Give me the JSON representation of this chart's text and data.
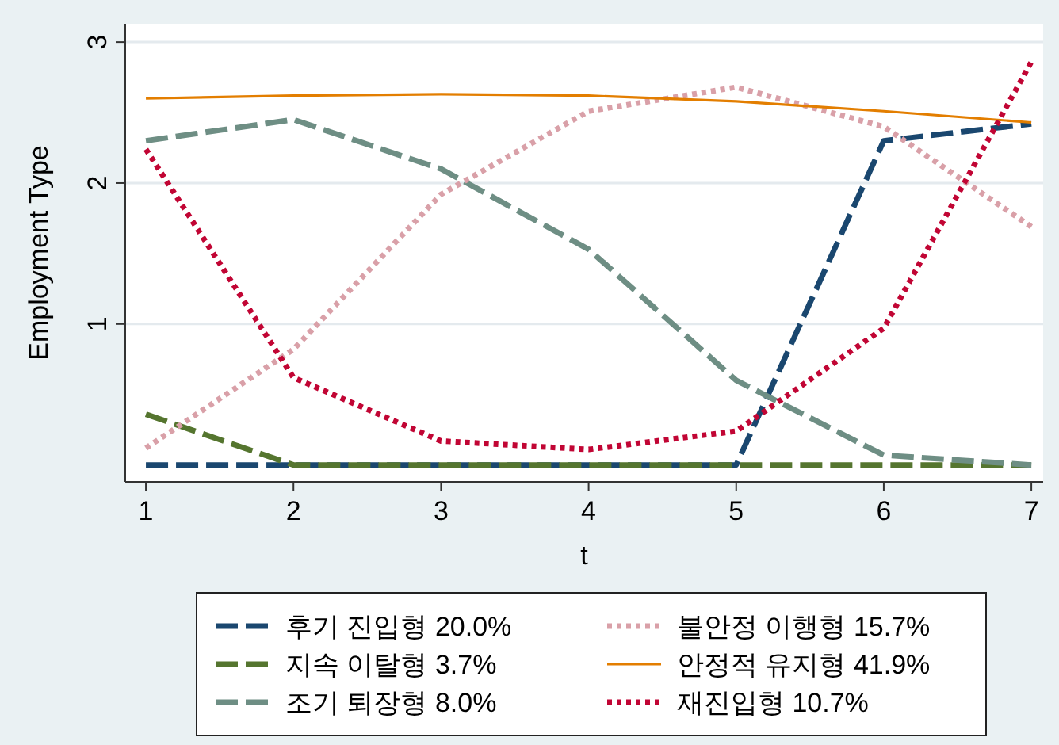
{
  "chart_data": {
    "type": "line",
    "xlabel": "t",
    "ylabel": "Employment Type",
    "x": [
      1,
      2,
      3,
      4,
      5,
      6,
      7
    ],
    "series": [
      {
        "name": "후기 진입형 20.0%",
        "color": "#1a476f",
        "line_style": "dashed",
        "values": [
          0,
          0,
          0,
          0,
          0,
          2.3,
          2.42
        ]
      },
      {
        "name": "지속 이탈형 3.7%",
        "color": "#55752f",
        "line_style": "dashed",
        "values": [
          0.36,
          0,
          0,
          0,
          0,
          0,
          0
        ]
      },
      {
        "name": "조기 퇴장형 8.0%",
        "color": "#6e8e84",
        "line_style": "dashed",
        "values": [
          2.3,
          2.45,
          2.1,
          1.53,
          0.6,
          0.07,
          0
        ]
      },
      {
        "name": "불안정 이행형 15.7%",
        "color": "#d9a0a8",
        "line_style": "dotted",
        "values": [
          0.12,
          0.82,
          1.92,
          2.51,
          2.68,
          2.4,
          1.69
        ]
      },
      {
        "name": "안정적 유지형 41.9%",
        "color": "#e37e00",
        "line_style": "solid",
        "values": [
          2.6,
          2.62,
          2.63,
          2.62,
          2.58,
          2.51,
          2.43
        ]
      },
      {
        "name": "재진입형 10.7%",
        "color": "#c10534",
        "line_style": "dotted",
        "values": [
          2.24,
          0.62,
          0.17,
          0.11,
          0.24,
          0.97,
          2.86
        ]
      }
    ],
    "xlim": [
      0.86,
      7.08
    ],
    "ylim": [
      -0.12,
      3.13
    ],
    "xticks": [
      1,
      2,
      3,
      4,
      5,
      6,
      7
    ],
    "yticks": [
      1,
      2,
      3
    ],
    "grid": "y",
    "legend": "bottom",
    "marker": "none"
  }
}
